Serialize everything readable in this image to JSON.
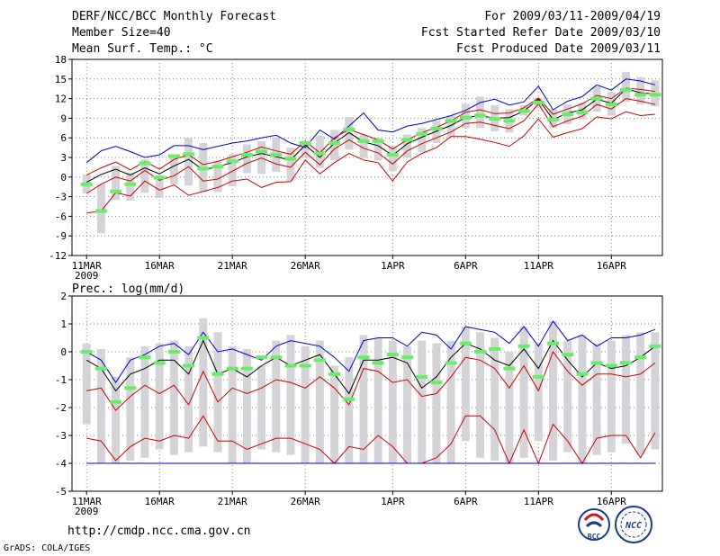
{
  "header": {
    "title": "DERF/NCC/BCC Monthly Forecast",
    "member_size": "Member Size=40",
    "variable": "Mean Surf. Temp.: °C",
    "period": "For 2009/03/11-2009/04/19",
    "fcst_started": "Fcst Started Refer Date 2009/03/10",
    "fcst_produced": "Fcst Produced Date 2009/03/11"
  },
  "footer": {
    "url": "http://cmdp.ncc.cma.gov.cn",
    "grads": "GrADS: COLA/IGES",
    "logo_bcc": "BCC",
    "logo_ncc": "NCC"
  },
  "colors": {
    "box": "#d3d3d8",
    "median": "#66ee66",
    "max": "#0000cc",
    "min": "#cc0000",
    "mean": "#000000",
    "grid": "#666666"
  },
  "chart_data": [
    {
      "type": "box-and-line",
      "title": "Mean Surf. Temp.: °C",
      "x": [
        1,
        2,
        3,
        4,
        5,
        6,
        7,
        8,
        9,
        10,
        11,
        12,
        13,
        14,
        15,
        16,
        17,
        18,
        19,
        20,
        21,
        22,
        23,
        24,
        25,
        26,
        27,
        28,
        29,
        30,
        31,
        32,
        33,
        34,
        35,
        36,
        37,
        38,
        39,
        40
      ],
      "xtick_labels": [
        {
          "x": 1,
          "label": "11MAR",
          "sub": "2009"
        },
        {
          "x": 6,
          "label": "16MAR"
        },
        {
          "x": 11,
          "label": "21MAR"
        },
        {
          "x": 16,
          "label": "26MAR"
        },
        {
          "x": 22,
          "label": "1APR"
        },
        {
          "x": 27,
          "label": "6APR"
        },
        {
          "x": 32,
          "label": "11APR"
        },
        {
          "x": 37,
          "label": "16APR"
        }
      ],
      "ylim": [
        -12,
        18
      ],
      "yticks": [
        -12,
        -9,
        -6,
        -3,
        0,
        3,
        6,
        9,
        12,
        15,
        18
      ],
      "series": [
        {
          "name": "max",
          "values": [
            2.2,
            4,
            4.7,
            3.9,
            3,
            3.4,
            4.8,
            4.8,
            4.2,
            4.7,
            5.2,
            5.5,
            6,
            6.4,
            5.2,
            4.5,
            7.2,
            5.8,
            7.8,
            9.8,
            7.2,
            6.9,
            7.8,
            8.2,
            8.8,
            9.4,
            10.2,
            11.4,
            11.9,
            11,
            11.5,
            13.9,
            10.3,
            11.6,
            12.3,
            14.1,
            13.3,
            15,
            14.7,
            14.1
          ]
        },
        {
          "name": "mean",
          "values": [
            -0.8,
            0.4,
            1.2,
            0.3,
            1.4,
            0.5,
            1.7,
            2.7,
            1.1,
            1.6,
            2.2,
            3.1,
            3.6,
            3.1,
            2.6,
            4.9,
            3,
            5.2,
            6.8,
            5.4,
            4.8,
            3.3,
            5.1,
            6.1,
            7,
            7.9,
            9.1,
            9.4,
            9,
            9.1,
            10.1,
            11.9,
            8.8,
            9.8,
            10.3,
            11.9,
            11.3,
            13.5,
            12.9,
            12.7
          ]
        },
        {
          "name": "upper",
          "values": [
            0.3,
            1.4,
            2.3,
            1.1,
            2.4,
            1.2,
            2.7,
            3.4,
            1.9,
            2.4,
            3.1,
            3.8,
            4.6,
            4,
            3.5,
            5.5,
            3.7,
            6,
            7.3,
            6.5,
            5.7,
            4.3,
            5.7,
            6.8,
            7.6,
            8.6,
            9.9,
            10.3,
            9.7,
            9.8,
            10.6,
            12.1,
            9.6,
            10.4,
            11.2,
            12.5,
            12,
            13.6,
            13.4,
            13.1
          ]
        },
        {
          "name": "lower",
          "values": [
            -2.5,
            -1.1,
            0,
            -0.6,
            1,
            -0.5,
            0.2,
            1.6,
            -0.6,
            -0.3,
            0.9,
            2.1,
            2.9,
            2,
            1.5,
            3.8,
            1.9,
            4.3,
            5.7,
            4.4,
            3.7,
            2,
            4,
            5.1,
            6,
            6.9,
            8.2,
            8.4,
            7.9,
            7.4,
            8.6,
            11.2,
            7.7,
            8.6,
            9.3,
            11.1,
            10.4,
            12,
            11.6,
            11.1
          ]
        },
        {
          "name": "min",
          "values": [
            -5.5,
            -5.2,
            -2.4,
            -2.9,
            -0.6,
            -2,
            -1.2,
            -2.8,
            -2.2,
            -1.6,
            -0.6,
            -0.3,
            -1.6,
            -0.8,
            -0.7,
            2.6,
            0.5,
            2.2,
            3.6,
            2.6,
            2.2,
            -0.6,
            2.3,
            3.6,
            4.5,
            6.2,
            6.2,
            5.8,
            5.3,
            4.7,
            6.3,
            8.9,
            6.1,
            6.8,
            7.4,
            9.2,
            8.9,
            10,
            9.4,
            9.6
          ]
        }
      ],
      "boxes": {
        "low": [
          -2.5,
          -8.6,
          -3.5,
          -3.6,
          -2.4,
          -3.2,
          -1.1,
          -1.3,
          -2.3,
          -2.3,
          -1.4,
          0.6,
          0.5,
          0.8,
          -0.6,
          3.1,
          1.4,
          2.6,
          4.2,
          2.9,
          2.5,
          0.9,
          3,
          3.8,
          5.2,
          6.1,
          7.5,
          7.5,
          7,
          6.8,
          9.4,
          10.5,
          7.5,
          8.1,
          8.8,
          10,
          9.4,
          11.5,
          11.1,
          10.8
        ],
        "high": [
          0.4,
          -1.1,
          1.7,
          0.7,
          2.7,
          0.3,
          3.4,
          6,
          5.2,
          2.5,
          3.5,
          5,
          5.5,
          6.1,
          4.5,
          5.5,
          6.3,
          7.2,
          9.2,
          6.5,
          6,
          4.6,
          6.5,
          7.5,
          8.6,
          9.4,
          11.2,
          12.3,
          11,
          10.4,
          11,
          12.1,
          10.4,
          11.1,
          11.4,
          13.9,
          13,
          16.1,
          15.3,
          14.8
        ],
        "median": [
          -1.1,
          -5.2,
          -2.2,
          -1.1,
          2.1,
          -0.1,
          3.2,
          3.5,
          1.3,
          1.6,
          2.4,
          3.4,
          3.9,
          3.4,
          2.8,
          5.2,
          3.6,
          5.2,
          7.3,
          5.5,
          5.5,
          3.4,
          5.7,
          6.6,
          7.4,
          8.6,
          9.1,
          9.4,
          8.9,
          8.6,
          10.1,
          11.4,
          8.8,
          9.6,
          9.9,
          12,
          11.1,
          13.3,
          12.6,
          12.6
        ]
      }
    },
    {
      "type": "box-and-line",
      "title": "Prec.: log(mm/d)",
      "x": [
        1,
        2,
        3,
        4,
        5,
        6,
        7,
        8,
        9,
        10,
        11,
        12,
        13,
        14,
        15,
        16,
        17,
        18,
        19,
        20,
        21,
        22,
        23,
        24,
        25,
        26,
        27,
        28,
        29,
        30,
        31,
        32,
        33,
        34,
        35,
        36,
        37,
        38,
        39,
        40
      ],
      "xtick_labels": [
        {
          "x": 1,
          "label": "11MAR",
          "sub": "2009"
        },
        {
          "x": 6,
          "label": "16MAR"
        },
        {
          "x": 11,
          "label": "21MAR"
        },
        {
          "x": 16,
          "label": "26MAR"
        },
        {
          "x": 22,
          "label": "1APR"
        },
        {
          "x": 27,
          "label": "6APR"
        },
        {
          "x": 32,
          "label": "11APR"
        },
        {
          "x": 37,
          "label": "16APR"
        }
      ],
      "ylim": [
        -5,
        2
      ],
      "yticks": [
        -5,
        -4,
        -3,
        -2,
        -1,
        0,
        1,
        2
      ],
      "series": [
        {
          "name": "max",
          "values": [
            0,
            -0.3,
            -1.1,
            -0.3,
            -0.1,
            0.2,
            0.3,
            -0.1,
            0.7,
            0,
            0.1,
            -0.1,
            -0.3,
            0.2,
            0.4,
            0.3,
            0.2,
            -0.2,
            -0.7,
            0.4,
            0.5,
            0.5,
            0.2,
            0.7,
            0.6,
            0.1,
            0.9,
            0.8,
            0.7,
            0.3,
            0.9,
            0.2,
            1.1,
            0.4,
            0.6,
            0.2,
            0.5,
            0.5,
            0.6,
            0.8
          ]
        },
        {
          "name": "mean",
          "values": [
            -0.3,
            -0.6,
            -1.4,
            -0.8,
            -0.6,
            -0.3,
            -0.3,
            -0.8,
            0.4,
            -0.8,
            -0.6,
            -0.9,
            -0.5,
            -0.2,
            -0.5,
            -0.3,
            -0.1,
            -0.8,
            -1.5,
            -0.3,
            -0.3,
            -0.2,
            -0.4,
            -1.3,
            -0.9,
            -0.2,
            0.3,
            0.1,
            -0.3,
            -0.5,
            0.1,
            -0.6,
            0.4,
            -0.3,
            -0.9,
            -0.4,
            -0.6,
            -0.5,
            -0.2,
            0.2
          ]
        },
        {
          "name": "p75",
          "values": [
            -1.4,
            -1.3,
            -2.1,
            -1.6,
            -1.2,
            -1.5,
            -1.2,
            -1.9,
            -0.7,
            -1.8,
            -1.3,
            -1.5,
            -1.3,
            -1,
            -1.1,
            -1.3,
            -0.9,
            -1.3,
            -1.9,
            -0.6,
            -0.7,
            -1.1,
            -1,
            -1.6,
            -1.5,
            -0.9,
            -0.2,
            -0.3,
            -0.6,
            -1.3,
            -0.5,
            -1.4,
            0,
            -0.7,
            -1.2,
            -0.8,
            -0.8,
            -0.9,
            -0.8,
            -0.4
          ]
        },
        {
          "name": "min",
          "values": [
            -3.1,
            -3.2,
            -3.9,
            -3.4,
            -3.1,
            -3.2,
            -3,
            -3.1,
            -2.3,
            -3.2,
            -3.2,
            -3.5,
            -3.3,
            -3.1,
            -3.1,
            -3.3,
            -3.5,
            -4,
            -3.4,
            -3.5,
            -3,
            -3.4,
            -4,
            -4,
            -3.8,
            -3.3,
            -2.3,
            -2.3,
            -2.8,
            -4,
            -2.8,
            -4,
            -2.6,
            -3.2,
            -4,
            -3.1,
            -3,
            -3,
            -3.8,
            -2.9
          ]
        },
        {
          "name": "floor",
          "values": [
            -4,
            -4,
            -4,
            -4,
            -4,
            -4,
            -4,
            -4,
            -4,
            -4,
            -4,
            -4,
            -4,
            -4,
            -4,
            -4,
            -4,
            -4,
            -4,
            -4,
            -4,
            -4,
            -4,
            -4,
            -4,
            -4,
            -4,
            -4,
            -4,
            -4,
            -4,
            -4,
            -4,
            -4,
            -4,
            -4,
            -4,
            -4,
            -4,
            -4
          ]
        }
      ],
      "boxes": {
        "low": [
          -2.6,
          -4,
          -4,
          -3.9,
          -3.8,
          -3.5,
          -3.7,
          -3.6,
          -3.4,
          -3.6,
          -4,
          -4,
          -3.5,
          -3.6,
          -3.7,
          -4,
          -4,
          -4,
          -4,
          -4,
          -4,
          -4,
          -4,
          -4,
          -4,
          -4,
          -3.2,
          -3.8,
          -3.9,
          -4,
          -3.8,
          -3.2,
          -3.9,
          -3.6,
          -4,
          -3.7,
          -3.6,
          -3.3,
          -3.7,
          -3.5
        ],
        "high": [
          0.3,
          0.1,
          -0.9,
          -0.2,
          0.2,
          0.3,
          0.4,
          0.2,
          1.2,
          0.7,
          0.2,
          0.1,
          -0.5,
          0.4,
          0.6,
          0.2,
          0.4,
          -0.5,
          -0.2,
          0.6,
          0.5,
          0.4,
          0.2,
          0.4,
          0.3,
          0.4,
          0.9,
          0.7,
          0.5,
          0,
          0.9,
          0.3,
          1.1,
          0.4,
          0.6,
          0.3,
          0.4,
          0.6,
          0.7,
          0.7
        ],
        "median": [
          0,
          -0.6,
          -1.8,
          -1.3,
          -0.2,
          -0.4,
          0,
          -0.5,
          0.5,
          -0.8,
          -0.6,
          -0.6,
          -0.2,
          -0.2,
          -0.5,
          -0.5,
          -0.3,
          -0.8,
          -1.7,
          -0.2,
          -0.4,
          -0.1,
          -0.2,
          -0.9,
          -1.1,
          -0.4,
          0.3,
          0,
          0.1,
          -0.6,
          0.2,
          -0.9,
          0.3,
          -0.1,
          -0.8,
          -0.4,
          -0.5,
          -0.4,
          -0.2,
          0.2
        ]
      }
    }
  ]
}
